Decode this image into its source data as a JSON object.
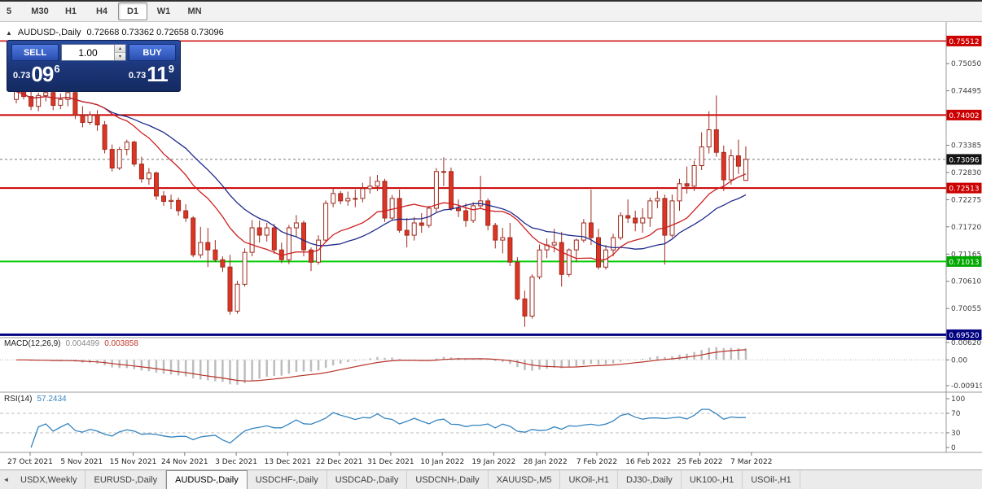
{
  "icons": {
    "one_click_collapse": "▲",
    "volume_up": "▴",
    "volume_down": "▾",
    "tab_scroll_left": "◄"
  },
  "toolbar": {
    "timeframes": [
      {
        "label": "5",
        "active": false
      },
      {
        "label": "M30",
        "active": false
      },
      {
        "label": "H1",
        "active": false
      },
      {
        "label": "H4",
        "active": false
      },
      {
        "label": "D1",
        "active": true
      },
      {
        "label": "W1",
        "active": false
      },
      {
        "label": "MN",
        "active": false
      }
    ]
  },
  "chart_header": {
    "symbol_title": "AUDUSD-,Daily",
    "ohlc": "0.72668 0.73362 0.72658 0.73096"
  },
  "one_click": {
    "sell_label": "SELL",
    "buy_label": "BUY",
    "volume": "1.00",
    "bid": {
      "prefix": "0.73",
      "big": "09",
      "sup": "6"
    },
    "ask": {
      "prefix": "0.73",
      "big": "11",
      "sup": "9"
    }
  },
  "price_axis": {
    "gray_labels": [
      {
        "value": 0.7505,
        "text": "0.75050"
      },
      {
        "value": 0.74495,
        "text": "0.74495"
      },
      {
        "value": 0.73385,
        "text": "0.73385"
      },
      {
        "value": 0.7283,
        "text": "0.72830"
      },
      {
        "value": 0.72275,
        "text": "0.72275"
      },
      {
        "value": 0.7172,
        "text": "0.71720"
      },
      {
        "value": 0.71165,
        "text": "0.71165"
      },
      {
        "value": 0.7061,
        "text": "0.70610"
      },
      {
        "value": 0.70055,
        "text": "0.70055"
      }
    ],
    "badges": [
      {
        "value": 0.75512,
        "text": "0.75512",
        "color": "#cc0000"
      },
      {
        "value": 0.74002,
        "text": "0.74002",
        "color": "#cc0000"
      },
      {
        "value": 0.73096,
        "text": "0.73096",
        "color": "#141414"
      },
      {
        "value": 0.72513,
        "text": "0.72513",
        "color": "#cc0000"
      },
      {
        "value": 0.71013,
        "text": "0.71013",
        "color": "#00a800"
      },
      {
        "value": 0.6952,
        "text": "0.69520",
        "color": "#000080"
      }
    ]
  },
  "levels": [
    {
      "value": 0.75512,
      "color": "#cc0000",
      "width": 1.5
    },
    {
      "value": 0.74002,
      "color": "#cc0000",
      "width": 2
    },
    {
      "value": 0.72513,
      "color": "#cc0000",
      "width": 2
    },
    {
      "value": 0.71013,
      "color": "#00cc00",
      "width": 2
    },
    {
      "value": 0.6952,
      "color": "#000080",
      "width": 3
    }
  ],
  "current_price": {
    "value": 0.73096
  },
  "macd_panel": {
    "label": "MACD(12,26,9)",
    "main_value": "0.004499",
    "signal_value": "0.003858",
    "axis_labels": [
      {
        "value": 0.0062,
        "text": "0.00620"
      },
      {
        "value": 0,
        "text": "0.00"
      },
      {
        "value": -0.00919,
        "text": "-0.00919"
      }
    ]
  },
  "rsi_panel": {
    "label": "RSI(14)",
    "value": "57.2434",
    "axis_labels": [
      {
        "value": 100,
        "text": "100"
      },
      {
        "value": 70,
        "text": "70"
      },
      {
        "value": 30,
        "text": "30"
      },
      {
        "value": 0,
        "text": "0"
      }
    ],
    "guide_levels": [
      70,
      30
    ]
  },
  "date_axis": {
    "labels": [
      "27 Oct 2021",
      "5 Nov 2021",
      "15 Nov 2021",
      "24 Nov 2021",
      "3 Dec 2021",
      "13 Dec 2021",
      "22 Dec 2021",
      "31 Dec 2021",
      "10 Jan 2022",
      "19 Jan 2022",
      "28 Jan 2022",
      "7 Feb 2022",
      "16 Feb 2022",
      "25 Feb 2022",
      "7 Mar 2022"
    ]
  },
  "tabs": {
    "items": [
      {
        "label": "USDX,Weekly",
        "active": false
      },
      {
        "label": "EURUSD-,Daily",
        "active": false
      },
      {
        "label": "AUDUSD-,Daily",
        "active": true
      },
      {
        "label": "USDCHF-,Daily",
        "active": false
      },
      {
        "label": "USDCAD-,Daily",
        "active": false
      },
      {
        "label": "USDCNH-,Daily",
        "active": false
      },
      {
        "label": "XAUUSD-,M5",
        "active": false
      },
      {
        "label": "UKOil-,H1",
        "active": false
      },
      {
        "label": "DJ30-,Daily",
        "active": false
      },
      {
        "label": "UK100-,H1",
        "active": false
      },
      {
        "label": "USOil-,H1",
        "active": false
      }
    ]
  },
  "chart_data": {
    "type": "candlestick",
    "symbol": "AUDUSD",
    "timeframe": "Daily",
    "price_scale": {
      "top": 0.759,
      "bottom": 0.6946
    },
    "bull_color": "#ffffff",
    "bear_color": "#dd3524",
    "outline_color": "#9e2b1f",
    "overlays": [
      {
        "name": "ma-fast",
        "type": "sma",
        "period": 13,
        "color": "#cc2020"
      },
      {
        "name": "ma-slow",
        "type": "sma",
        "period": 21,
        "color": "#1f2a8c"
      }
    ],
    "indicators": [
      {
        "name": "MACD",
        "params": [
          12,
          26,
          9
        ],
        "range": [
          -0.0115,
          0.0079
        ],
        "histogram_color": "#bdbdbd",
        "signal_color": "#b8342b"
      },
      {
        "name": "RSI",
        "params": [
          14
        ],
        "range": [
          0,
          100
        ],
        "line_color": "#3585c0"
      }
    ],
    "candles": [
      [
        0.7432,
        0.746,
        0.7424,
        0.7448
      ],
      [
        0.7448,
        0.7459,
        0.7432,
        0.7438
      ],
      [
        0.7438,
        0.7448,
        0.741,
        0.7418
      ],
      [
        0.7418,
        0.7446,
        0.7408,
        0.744
      ],
      [
        0.744,
        0.7461,
        0.7428,
        0.7446
      ],
      [
        0.7446,
        0.7452,
        0.741,
        0.742
      ],
      [
        0.742,
        0.7444,
        0.7412,
        0.7432
      ],
      [
        0.7432,
        0.7455,
        0.7418,
        0.7446
      ],
      [
        0.7446,
        0.7448,
        0.7392,
        0.74
      ],
      [
        0.74,
        0.7418,
        0.7375,
        0.7385
      ],
      [
        0.7385,
        0.7408,
        0.738,
        0.74
      ],
      [
        0.74,
        0.741,
        0.7368,
        0.738
      ],
      [
        0.738,
        0.7388,
        0.7322,
        0.733
      ],
      [
        0.733,
        0.734,
        0.7285,
        0.7292
      ],
      [
        0.7292,
        0.7335,
        0.7288,
        0.733
      ],
      [
        0.733,
        0.735,
        0.7318,
        0.7345
      ],
      [
        0.7345,
        0.7348,
        0.7295,
        0.73
      ],
      [
        0.73,
        0.7315,
        0.7262,
        0.727
      ],
      [
        0.727,
        0.7292,
        0.7258,
        0.7282
      ],
      [
        0.7282,
        0.7285,
        0.7227,
        0.7235
      ],
      [
        0.7235,
        0.7245,
        0.7215,
        0.7224
      ],
      [
        0.7224,
        0.7238,
        0.7208,
        0.7226
      ],
      [
        0.7226,
        0.7232,
        0.7195,
        0.7205
      ],
      [
        0.7205,
        0.7218,
        0.7182,
        0.719
      ],
      [
        0.719,
        0.7194,
        0.711,
        0.7115
      ],
      [
        0.7115,
        0.7172,
        0.7108,
        0.714
      ],
      [
        0.714,
        0.717,
        0.709,
        0.7125
      ],
      [
        0.7125,
        0.7145,
        0.71,
        0.7105
      ],
      [
        0.7105,
        0.7112,
        0.708,
        0.709
      ],
      [
        0.709,
        0.7115,
        0.6993,
        0.7
      ],
      [
        0.7,
        0.7062,
        0.6995,
        0.7055
      ],
      [
        0.7055,
        0.7128,
        0.705,
        0.712
      ],
      [
        0.712,
        0.7186,
        0.7112,
        0.717
      ],
      [
        0.717,
        0.7185,
        0.714,
        0.7155
      ],
      [
        0.7155,
        0.718,
        0.7142,
        0.717
      ],
      [
        0.717,
        0.7178,
        0.7117,
        0.7125
      ],
      [
        0.7125,
        0.714,
        0.7098,
        0.7105
      ],
      [
        0.7105,
        0.7176,
        0.7096,
        0.717
      ],
      [
        0.717,
        0.7196,
        0.7152,
        0.718
      ],
      [
        0.718,
        0.7185,
        0.7112,
        0.7125
      ],
      [
        0.7125,
        0.713,
        0.7082,
        0.71
      ],
      [
        0.71,
        0.7155,
        0.7095,
        0.7145
      ],
      [
        0.7145,
        0.7226,
        0.714,
        0.722
      ],
      [
        0.722,
        0.725,
        0.7212,
        0.724
      ],
      [
        0.724,
        0.7245,
        0.7218,
        0.7225
      ],
      [
        0.7225,
        0.7244,
        0.7215,
        0.723
      ],
      [
        0.723,
        0.7248,
        0.7212,
        0.723
      ],
      [
        0.723,
        0.7262,
        0.7222,
        0.725
      ],
      [
        0.725,
        0.7275,
        0.724,
        0.7255
      ],
      [
        0.7255,
        0.7278,
        0.7245,
        0.7265
      ],
      [
        0.7265,
        0.727,
        0.7182,
        0.719
      ],
      [
        0.719,
        0.7237,
        0.7185,
        0.723
      ],
      [
        0.723,
        0.7248,
        0.716,
        0.7165
      ],
      [
        0.7165,
        0.719,
        0.713,
        0.7155
      ],
      [
        0.7155,
        0.7192,
        0.7144,
        0.718
      ],
      [
        0.718,
        0.72,
        0.716,
        0.7175
      ],
      [
        0.7175,
        0.7215,
        0.717,
        0.721
      ],
      [
        0.721,
        0.7292,
        0.7202,
        0.7285
      ],
      [
        0.7285,
        0.7314,
        0.7255,
        0.7285
      ],
      [
        0.7285,
        0.7293,
        0.7205,
        0.721
      ],
      [
        0.721,
        0.7228,
        0.7192,
        0.7205
      ],
      [
        0.7205,
        0.722,
        0.7172,
        0.7185
      ],
      [
        0.7185,
        0.7222,
        0.718,
        0.7215
      ],
      [
        0.7215,
        0.7276,
        0.7208,
        0.7225
      ],
      [
        0.7225,
        0.723,
        0.7165,
        0.7175
      ],
      [
        0.7175,
        0.718,
        0.7128,
        0.7145
      ],
      [
        0.7145,
        0.717,
        0.7118,
        0.715
      ],
      [
        0.715,
        0.718,
        0.7092,
        0.71
      ],
      [
        0.71,
        0.711,
        0.7022,
        0.7025
      ],
      [
        0.7025,
        0.7042,
        0.6968,
        0.699
      ],
      [
        0.699,
        0.7075,
        0.6985,
        0.707
      ],
      [
        0.707,
        0.7136,
        0.7065,
        0.7125
      ],
      [
        0.7125,
        0.7148,
        0.7108,
        0.7135
      ],
      [
        0.7135,
        0.7168,
        0.712,
        0.714
      ],
      [
        0.714,
        0.7162,
        0.705,
        0.7075
      ],
      [
        0.7075,
        0.7128,
        0.707,
        0.7125
      ],
      [
        0.7125,
        0.7148,
        0.71,
        0.7145
      ],
      [
        0.7145,
        0.7188,
        0.714,
        0.718
      ],
      [
        0.718,
        0.7248,
        0.7135,
        0.715
      ],
      [
        0.715,
        0.7168,
        0.7085,
        0.709
      ],
      [
        0.709,
        0.7135,
        0.7085,
        0.7125
      ],
      [
        0.7125,
        0.7158,
        0.7112,
        0.715
      ],
      [
        0.715,
        0.7202,
        0.7145,
        0.7195
      ],
      [
        0.7195,
        0.7228,
        0.718,
        0.719
      ],
      [
        0.719,
        0.7205,
        0.7163,
        0.718
      ],
      [
        0.718,
        0.721,
        0.716,
        0.719
      ],
      [
        0.719,
        0.7232,
        0.7172,
        0.7225
      ],
      [
        0.7225,
        0.7245,
        0.721,
        0.723
      ],
      [
        0.723,
        0.7238,
        0.7095,
        0.7155
      ],
      [
        0.7155,
        0.7238,
        0.715,
        0.7225
      ],
      [
        0.7225,
        0.727,
        0.7205,
        0.726
      ],
      [
        0.726,
        0.7295,
        0.724,
        0.7255
      ],
      [
        0.7255,
        0.7307,
        0.7245,
        0.7297
      ],
      [
        0.7297,
        0.7365,
        0.7288,
        0.7335
      ],
      [
        0.7335,
        0.7408,
        0.7322,
        0.737
      ],
      [
        0.737,
        0.744,
        0.7315,
        0.7324
      ],
      [
        0.7324,
        0.7338,
        0.7245,
        0.7268
      ],
      [
        0.7268,
        0.733,
        0.7258,
        0.7317
      ],
      [
        0.7317,
        0.735,
        0.728,
        0.7296
      ],
      [
        0.72668,
        0.73362,
        0.72658,
        0.73096
      ]
    ]
  }
}
